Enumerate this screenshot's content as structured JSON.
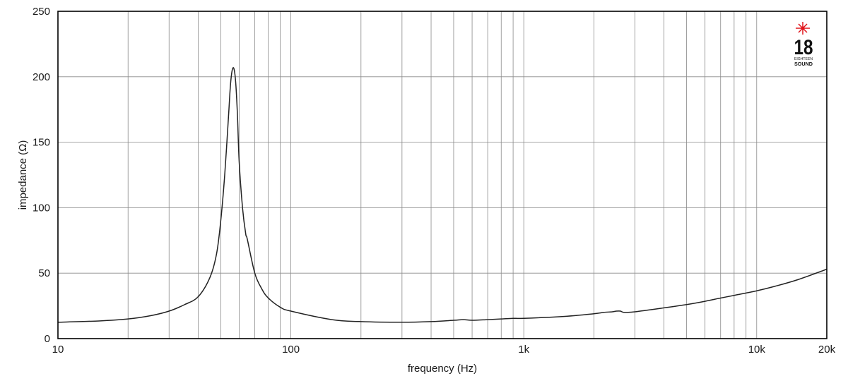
{
  "chart_data": {
    "type": "line",
    "title": "",
    "xlabel": "frequency (Hz)",
    "ylabel": "impedance (Ω)",
    "x_scale": "log",
    "xlim": [
      10,
      20000
    ],
    "ylim": [
      0,
      250
    ],
    "grid": true,
    "x_ticks": [
      {
        "value": 10,
        "label": "10"
      },
      {
        "value": 100,
        "label": "100"
      },
      {
        "value": 1000,
        "label": "1k"
      },
      {
        "value": 10000,
        "label": "10k"
      },
      {
        "value": 20000,
        "label": "20k"
      }
    ],
    "y_ticks": [
      {
        "value": 0,
        "label": "0"
      },
      {
        "value": 50,
        "label": "50"
      },
      {
        "value": 100,
        "label": "100"
      },
      {
        "value": 150,
        "label": "150"
      },
      {
        "value": 200,
        "label": "200"
      },
      {
        "value": 250,
        "label": "250"
      }
    ],
    "series": [
      {
        "color": "#222222",
        "x": [
          10,
          15,
          20,
          25,
          30,
          35,
          40,
          45,
          48,
          50,
          52,
          54,
          55,
          56,
          57,
          58,
          59,
          60,
          62,
          64,
          65,
          70,
          75,
          80,
          90,
          100,
          150,
          200,
          300,
          400,
          500,
          550,
          600,
          700,
          800,
          900,
          1000,
          1500,
          2000,
          2200,
          2400,
          2500,
          2600,
          2700,
          3000,
          4000,
          5000,
          6000,
          7000,
          8000,
          10000,
          12000,
          15000,
          20000
        ],
        "y": [
          12.5,
          13.5,
          15,
          17.5,
          21,
          26,
          32,
          47,
          65,
          90,
          125,
          170,
          193,
          205,
          206,
          195,
          170,
          135,
          100,
          80,
          76,
          50,
          38,
          31,
          24,
          21,
          14.5,
          13,
          12.5,
          13,
          14,
          14.5,
          14,
          14.5,
          15,
          15.5,
          15.5,
          17,
          19,
          20,
          20.5,
          21,
          21,
          20,
          20.5,
          23.5,
          26,
          28.5,
          31,
          33,
          36.5,
          40,
          45,
          53
        ]
      }
    ]
  },
  "logo": {
    "number": "18",
    "sub1": "EIGHTEEN",
    "sub2": "SOUND",
    "star_color": "#e0151b"
  }
}
